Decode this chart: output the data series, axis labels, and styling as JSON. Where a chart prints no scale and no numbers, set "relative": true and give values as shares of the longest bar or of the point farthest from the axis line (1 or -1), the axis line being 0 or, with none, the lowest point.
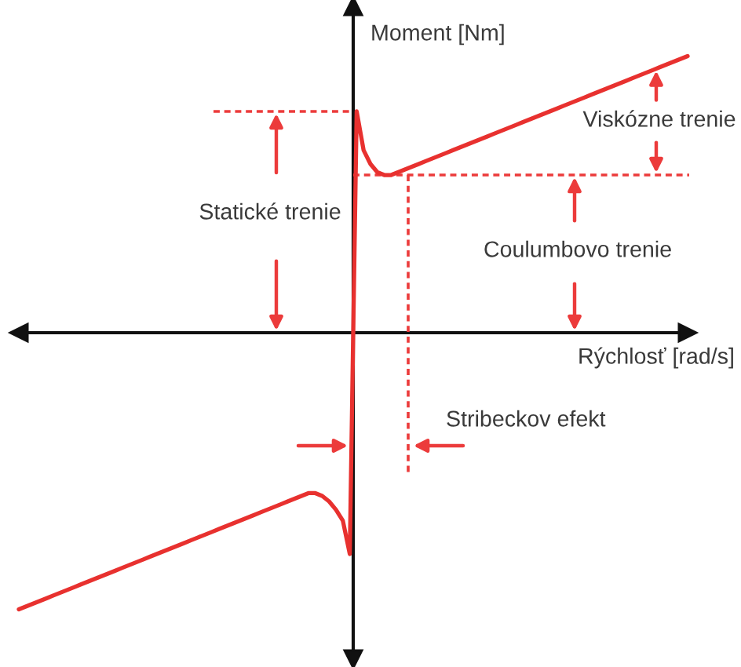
{
  "chart_data": {
    "type": "line",
    "relative": true,
    "line_style": "solid",
    "xlabel": "Rýchlosť [rad/s]",
    "ylabel": "Moment [Nm]",
    "categories": [
      null,
      null,
      null,
      null,
      null,
      null,
      null,
      null,
      null,
      null,
      null,
      null,
      null,
      null,
      null,
      null,
      null,
      null,
      null,
      null,
      null,
      null,
      null,
      null,
      null,
      null,
      null,
      null,
      null,
      null,
      null,
      null,
      null,
      null,
      null,
      null,
      null,
      null,
      null,
      null,
      null,
      null,
      null,
      null,
      null,
      null,
      null,
      null,
      null,
      null,
      null,
      null,
      null,
      null,
      null,
      null,
      null,
      null,
      null,
      null,
      null,
      null,
      null,
      null,
      null,
      null,
      null,
      null,
      null,
      null,
      null,
      null,
      null,
      null,
      null,
      null,
      null,
      null,
      null,
      null,
      null,
      null,
      null,
      null,
      null,
      null,
      null,
      null,
      null,
      null,
      null,
      null,
      null,
      null,
      null,
      null,
      null,
      null
    ],
    "series": [
      {
        "color": "#e8312f",
        "values": [
          -1.0,
          -0.99,
          -0.98,
          -0.97,
          -0.96,
          -0.95,
          -0.94,
          -0.93,
          -0.92,
          -0.91,
          -0.9,
          -0.89,
          -0.88,
          -0.87,
          -0.86,
          -0.85,
          -0.84,
          -0.83,
          -0.82,
          -0.81,
          -0.8,
          -0.79,
          -0.78,
          -0.77,
          -0.76,
          -0.75,
          -0.74,
          -0.73,
          -0.72,
          -0.71,
          -0.7,
          -0.69,
          -0.68,
          -0.67,
          -0.66,
          -0.65,
          -0.64,
          -0.63,
          -0.62,
          -0.61,
          -0.6,
          -0.59,
          -0.58,
          -0.58,
          -0.59,
          -0.61,
          -0.64,
          -0.68,
          -0.8,
          0.8,
          0.66,
          0.61,
          0.58,
          0.57,
          0.57,
          0.58,
          0.59,
          0.6,
          0.61,
          0.62,
          0.63,
          0.64,
          0.65,
          0.66,
          0.67,
          0.68,
          0.69,
          0.7,
          0.71,
          0.72,
          0.73,
          0.74,
          0.75,
          0.76,
          0.77,
          0.78,
          0.79,
          0.8,
          0.81,
          0.82,
          0.83,
          0.84,
          0.85,
          0.86,
          0.87,
          0.88,
          0.89,
          0.9,
          0.91,
          0.92,
          0.93,
          0.94,
          0.95,
          0.96,
          0.97,
          0.98,
          0.99,
          1.0
        ]
      }
    ],
    "ref_lines": [
      {
        "axis": "y",
        "value": 0.8,
        "color": "#ec3b3b",
        "line_style": "dashed"
      },
      {
        "axis": "y",
        "value": 0.57,
        "color": "#ec3b3b",
        "line_style": "dashed"
      }
    ],
    "annotations": [
      "Statické trenie",
      "Viskózne trenie",
      "Coulumbovo trenie",
      "Stribeckov efekt"
    ]
  }
}
